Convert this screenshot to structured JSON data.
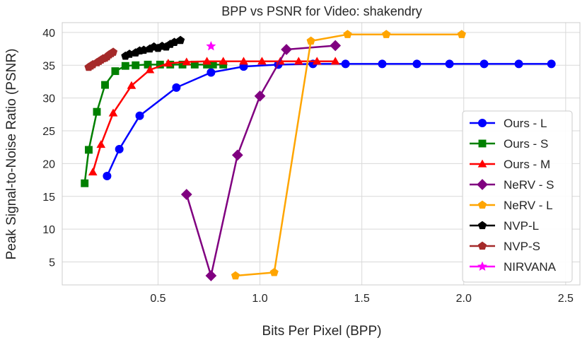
{
  "chart_data": {
    "type": "line",
    "title": "BPP vs PSNR for Video: shakendry",
    "xlabel": "Bits Per Pixel (BPP)",
    "ylabel": "Peak Signal-to-Noise Ratio (PSNR)",
    "xlim": [
      0.03,
      2.57
    ],
    "ylim": [
      1.5,
      41.5
    ],
    "xticks": [
      0.5,
      1.0,
      1.5,
      2.0,
      2.5
    ],
    "xtick_labels": [
      "0.5",
      "1.0",
      "1.5",
      "2.0",
      "2.5"
    ],
    "yticks": [
      5,
      10,
      15,
      20,
      25,
      30,
      35,
      40
    ],
    "ytick_labels": [
      "5",
      "10",
      "15",
      "20",
      "25",
      "30",
      "35",
      "40"
    ],
    "grid": true,
    "legend_position": "right",
    "series": [
      {
        "name": "Ours - L",
        "color": "#0000ff",
        "marker": "circle",
        "x": [
          0.25,
          0.31,
          0.41,
          0.59,
          0.76,
          0.92,
          1.09,
          1.26,
          1.42,
          1.6,
          1.77,
          1.93,
          2.1,
          2.27,
          2.43
        ],
        "y": [
          18.1,
          22.2,
          27.3,
          31.6,
          33.9,
          34.8,
          35.1,
          35.2,
          35.2,
          35.2,
          35.2,
          35.2,
          35.2,
          35.2,
          35.2
        ]
      },
      {
        "name": "Ours - S",
        "color": "#008000",
        "marker": "square",
        "x": [
          0.14,
          0.16,
          0.2,
          0.24,
          0.29,
          0.34,
          0.39,
          0.45,
          0.51,
          0.56,
          0.62,
          0.68,
          0.74,
          0.77,
          0.82
        ],
        "y": [
          17.0,
          22.1,
          27.9,
          32.0,
          34.1,
          34.9,
          35.0,
          35.1,
          35.1,
          35.1,
          35.1,
          35.1,
          35.1,
          35.1,
          35.1
        ]
      },
      {
        "name": "Ours - M",
        "color": "#ff0000",
        "marker": "triangle",
        "x": [
          0.18,
          0.22,
          0.28,
          0.37,
          0.46,
          0.55,
          0.64,
          0.74,
          0.82,
          0.92,
          1.01,
          1.1,
          1.19,
          1.28,
          1.37
        ],
        "y": [
          18.7,
          22.9,
          27.7,
          31.9,
          34.3,
          35.3,
          35.5,
          35.6,
          35.6,
          35.6,
          35.6,
          35.6,
          35.6,
          35.6,
          35.6
        ]
      },
      {
        "name": "NeRV - S",
        "color": "#800080",
        "marker": "diamond",
        "x": [
          0.64,
          0.76,
          0.89,
          1.0,
          1.13,
          1.37
        ],
        "y": [
          15.3,
          2.9,
          21.3,
          30.3,
          37.4,
          38.0
        ]
      },
      {
        "name": "NeRV - L",
        "color": "#ffa500",
        "marker": "pentagon",
        "x": [
          0.88,
          1.07,
          1.25,
          1.43,
          1.62,
          1.99
        ],
        "y": [
          2.9,
          3.4,
          38.7,
          39.7,
          39.7,
          39.7
        ]
      },
      {
        "name": "NVP-L",
        "color": "#000000",
        "marker": "pentagon",
        "x": [
          0.34,
          0.36,
          0.39,
          0.41,
          0.43,
          0.46,
          0.48,
          0.5,
          0.52,
          0.54,
          0.56,
          0.58,
          0.61
        ],
        "y": [
          36.4,
          36.7,
          36.9,
          37.2,
          37.3,
          37.5,
          37.8,
          37.6,
          37.9,
          37.8,
          38.2,
          38.5,
          38.8
        ]
      },
      {
        "name": "NVP-S",
        "color": "#a52a2a",
        "marker": "pentagon",
        "x": [
          0.16,
          0.17,
          0.18,
          0.2,
          0.21,
          0.22,
          0.23,
          0.24,
          0.25,
          0.26,
          0.27,
          0.28
        ],
        "y": [
          34.7,
          34.9,
          35.1,
          35.4,
          35.6,
          35.8,
          36.0,
          36.1,
          36.3,
          36.6,
          36.8,
          37.0
        ]
      },
      {
        "name": "NIRVANA",
        "color": "#ff00ff",
        "marker": "star",
        "x": [
          0.76
        ],
        "y": [
          37.9
        ]
      }
    ]
  }
}
